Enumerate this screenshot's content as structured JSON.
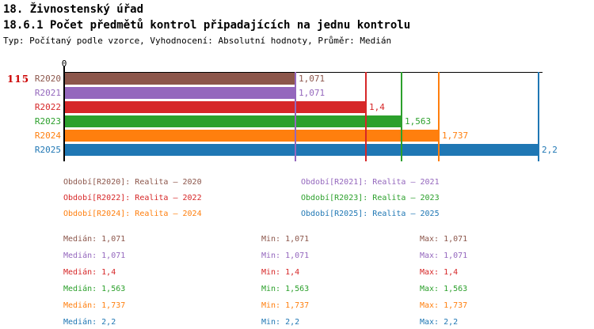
{
  "header": {
    "title": "18. Živnostenský úřad",
    "subtitle": "18.6.1 Počet předmětů kontrol připadajících na jednu kontrolu",
    "meta": "Typ: Počítaný podle vzorce, Vyhodnocení: Absolutní hodnoty, Průměr: Medián"
  },
  "row_indicator": {
    "value": "115",
    "color": "#cc0000"
  },
  "chart_data": {
    "type": "bar",
    "orientation": "horizontal",
    "x_axis_origin_label": "0",
    "xlim": [
      0,
      2.2
    ],
    "grid": false,
    "marker_lines_at_bar_values": true,
    "categories": [
      "R2020",
      "R2021",
      "R2022",
      "R2023",
      "R2024",
      "R2025"
    ],
    "values": [
      1.071,
      1.071,
      1.4,
      1.563,
      1.737,
      2.2
    ],
    "value_labels": [
      "1,071",
      "1,071",
      "1,4",
      "1,563",
      "1,737",
      "2,2"
    ],
    "series_colors": [
      "#8c564b",
      "#9467bd",
      "#d62728",
      "#2ca02c",
      "#ff7f0e",
      "#1f77b4"
    ]
  },
  "legend": {
    "items": [
      {
        "label": "Období[R2020]: Realita – 2020",
        "color": "#8c564b"
      },
      {
        "label": "Období[R2021]: Realita – 2021",
        "color": "#9467bd"
      },
      {
        "label": "Období[R2022]: Realita – 2022",
        "color": "#d62728"
      },
      {
        "label": "Období[R2023]: Realita – 2023",
        "color": "#2ca02c"
      },
      {
        "label": "Období[R2024]: Realita – 2024",
        "color": "#ff7f0e"
      },
      {
        "label": "Období[R2025]: Realita – 2025",
        "color": "#1f77b4"
      }
    ]
  },
  "stats": {
    "median_label": "Medián",
    "min_label": "Min",
    "max_label": "Max",
    "rows": [
      {
        "median": "1,071",
        "min": "1,071",
        "max": "1,071",
        "color": "#8c564b"
      },
      {
        "median": "1,071",
        "min": "1,071",
        "max": "1,071",
        "color": "#9467bd"
      },
      {
        "median": "1,4",
        "min": "1,4",
        "max": "1,4",
        "color": "#d62728"
      },
      {
        "median": "1,563",
        "min": "1,563",
        "max": "1,563",
        "color": "#2ca02c"
      },
      {
        "median": "1,737",
        "min": "1,737",
        "max": "1,737",
        "color": "#ff7f0e"
      },
      {
        "median": "2,2",
        "min": "2,2",
        "max": "2,2",
        "color": "#1f77b4"
      }
    ]
  }
}
